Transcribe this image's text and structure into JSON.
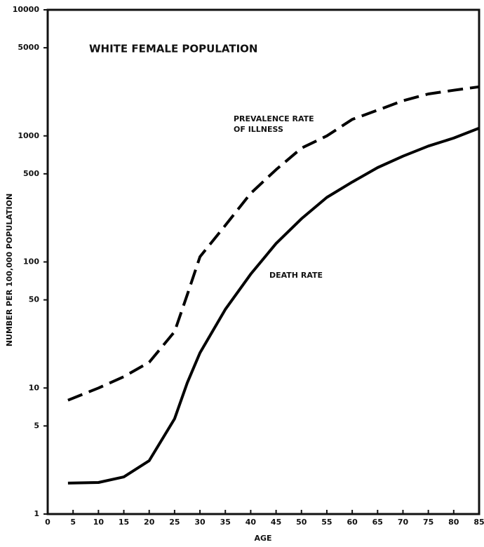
{
  "chart_data": {
    "type": "line",
    "title": "WHITE FEMALE POPULATION",
    "xlabel": "AGE",
    "ylabel": "NUMBER PER 100,000 POPULATION",
    "annotations": [
      "PREVALENCE RATE",
      "OF ILLNESS",
      "DEATH RATE"
    ],
    "x": [
      4,
      10,
      15,
      20,
      25,
      27.5,
      30,
      35,
      40,
      45,
      50,
      55,
      60,
      65,
      70,
      75,
      80,
      85
    ],
    "series": [
      {
        "color": "#000000",
        "style": "dashed",
        "values": [
          8,
          10,
          12.3,
          16,
          28,
          55,
          110,
          195,
          350,
          540,
          800,
          1000,
          1350,
          1600,
          1900,
          2150,
          2300,
          2450
        ]
      },
      {
        "color": "#000000",
        "style": "solid",
        "values": [
          1.76,
          1.78,
          1.97,
          2.65,
          5.7,
          11,
          19,
          42,
          80,
          140,
          220,
          325,
          430,
          560,
          690,
          830,
          960,
          1150
        ]
      }
    ],
    "xlim": [
      0,
      85
    ],
    "xticks": [
      0,
      5,
      10,
      15,
      20,
      25,
      30,
      35,
      40,
      45,
      50,
      55,
      60,
      65,
      70,
      75,
      80,
      85
    ],
    "ylim": [
      1,
      10000
    ],
    "yticks": [
      1,
      5,
      10,
      50,
      100,
      500,
      1000,
      5000,
      10000
    ],
    "ylog": true,
    "grid": false
  }
}
